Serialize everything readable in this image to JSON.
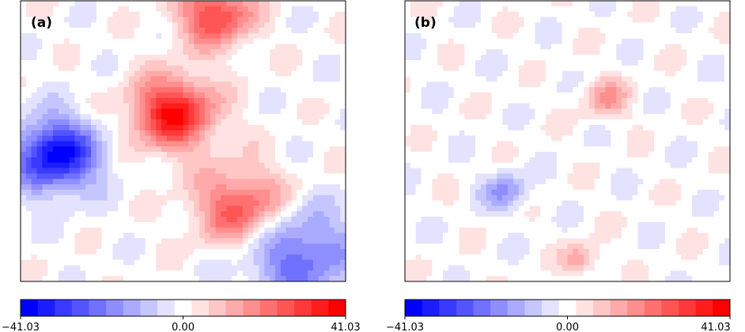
{
  "chart_data": [
    {
      "type": "heatmap",
      "panel_label": "(a)",
      "colormap": "bwr",
      "levels": 19,
      "vmin": -41.03,
      "vmax": 41.03,
      "grid": false,
      "colorbar": {
        "placement": "bottom",
        "tick_labels": [
          "−41.03",
          "0.00",
          "41.03"
        ]
      },
      "field_summary": {
        "positive_max_approx": 41.03,
        "negative_min_approx": -41.03,
        "features": [
          {
            "sign": "positive",
            "amplitude": 0.95,
            "u": 0.47,
            "v": 0.4,
            "spread": 0.09
          },
          {
            "sign": "negative",
            "amplitude": 1.0,
            "u": 0.11,
            "v": 0.55,
            "spread": 0.09
          },
          {
            "sign": "positive",
            "amplitude": 0.75,
            "u": 0.6,
            "v": 0.05,
            "spread": 0.08
          },
          {
            "sign": "negative",
            "amplitude": 0.6,
            "u": 0.85,
            "v": 0.9,
            "spread": 0.12
          },
          {
            "sign": "positive",
            "amplitude": 0.7,
            "u": 0.68,
            "v": 0.74,
            "spread": 0.1
          }
        ]
      }
    },
    {
      "type": "heatmap",
      "panel_label": "(b)",
      "colormap": "bwr",
      "levels": 19,
      "vmin": -41.03,
      "vmax": 41.03,
      "grid": false,
      "colorbar": {
        "placement": "bottom",
        "tick_labels": [
          "−41.03",
          "0.00",
          "41.03"
        ]
      },
      "field_summary": {
        "positive_max_approx": 16,
        "negative_min_approx": -16,
        "features": [
          {
            "sign": "positive",
            "amplitude": 0.38,
            "u": 0.62,
            "v": 0.35,
            "spread": 0.05
          },
          {
            "sign": "negative",
            "amplitude": 0.38,
            "u": 0.31,
            "v": 0.68,
            "spread": 0.05
          },
          {
            "sign": "positive",
            "amplitude": 0.35,
            "u": 0.54,
            "v": 0.92,
            "spread": 0.04
          }
        ]
      }
    }
  ],
  "colors": {
    "stops": [
      "#0000ff",
      "#ffffff",
      "#ff0000"
    ],
    "frame": "#000000"
  }
}
